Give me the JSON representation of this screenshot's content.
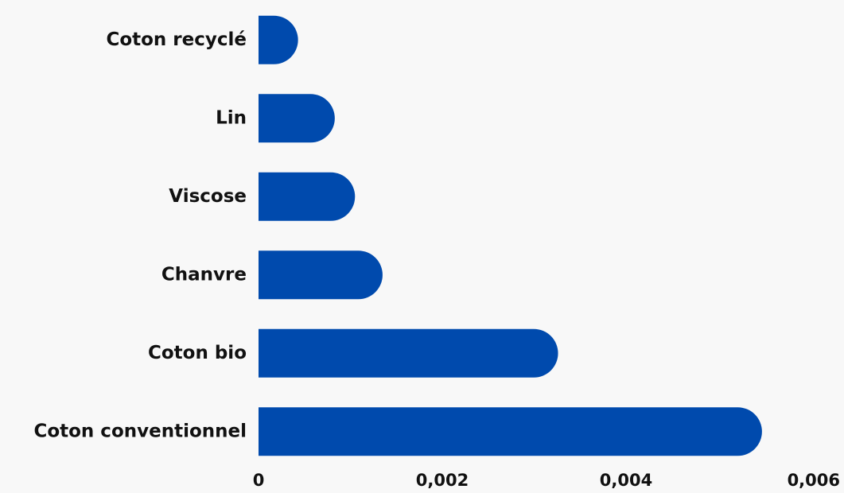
{
  "chart_data": {
    "type": "bar",
    "orientation": "horizontal",
    "categories": [
      "Coton recyclé",
      "Lin",
      "Viscose",
      "Chanvre",
      "Coton bio",
      "Coton conventionnel"
    ],
    "values": [
      0.00043,
      0.00083,
      0.00105,
      0.00135,
      0.00326,
      0.00548
    ],
    "color": "#004aad",
    "xlim": [
      0,
      0.006
    ],
    "xticks": [
      0,
      {
        "value": 0.002,
        "label": "0,002"
      },
      {
        "value": 0.004,
        "label": "0,004"
      },
      {
        "value": 0.006,
        "label": "0,006"
      }
    ],
    "grid": false
  }
}
